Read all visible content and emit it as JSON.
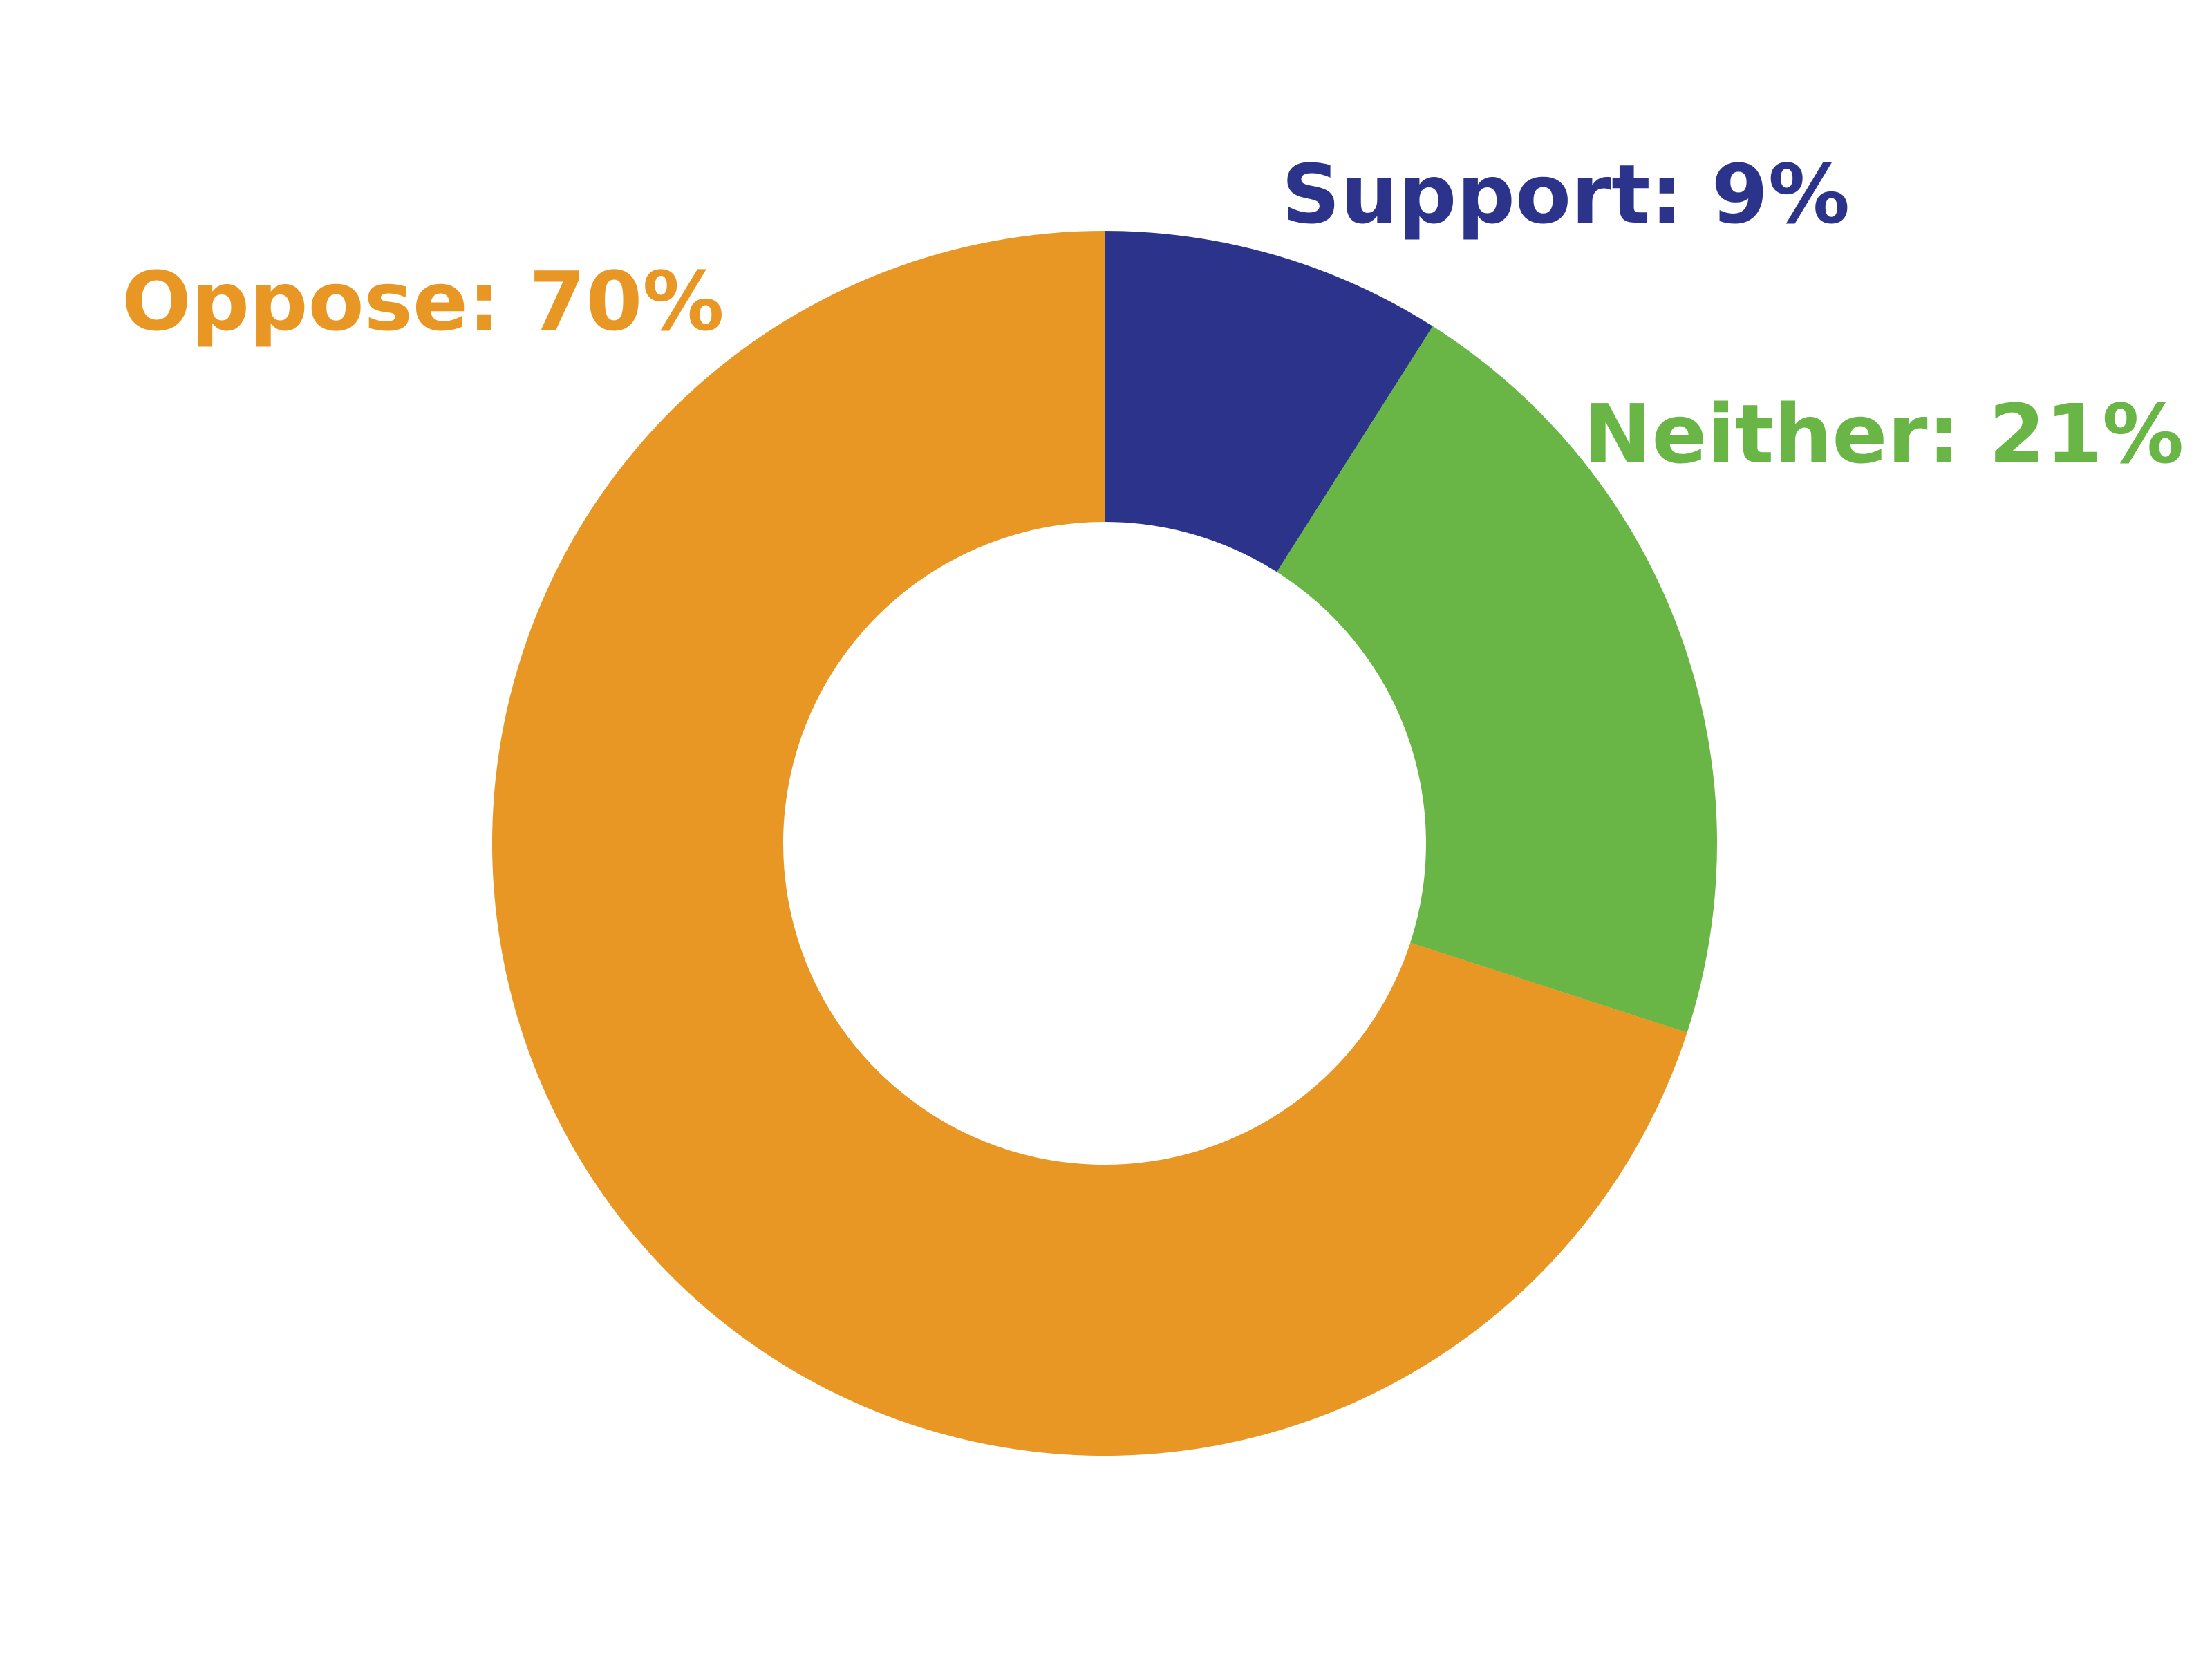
{
  "chart_data": {
    "type": "donut",
    "values": [
      9,
      21,
      70
    ],
    "value_labels": [
      "Support: 9%",
      "Neither: 21%",
      "Oppose: 70%"
    ],
    "colors": [
      "#2b348a",
      "#69b545",
      "#e89724"
    ]
  }
}
